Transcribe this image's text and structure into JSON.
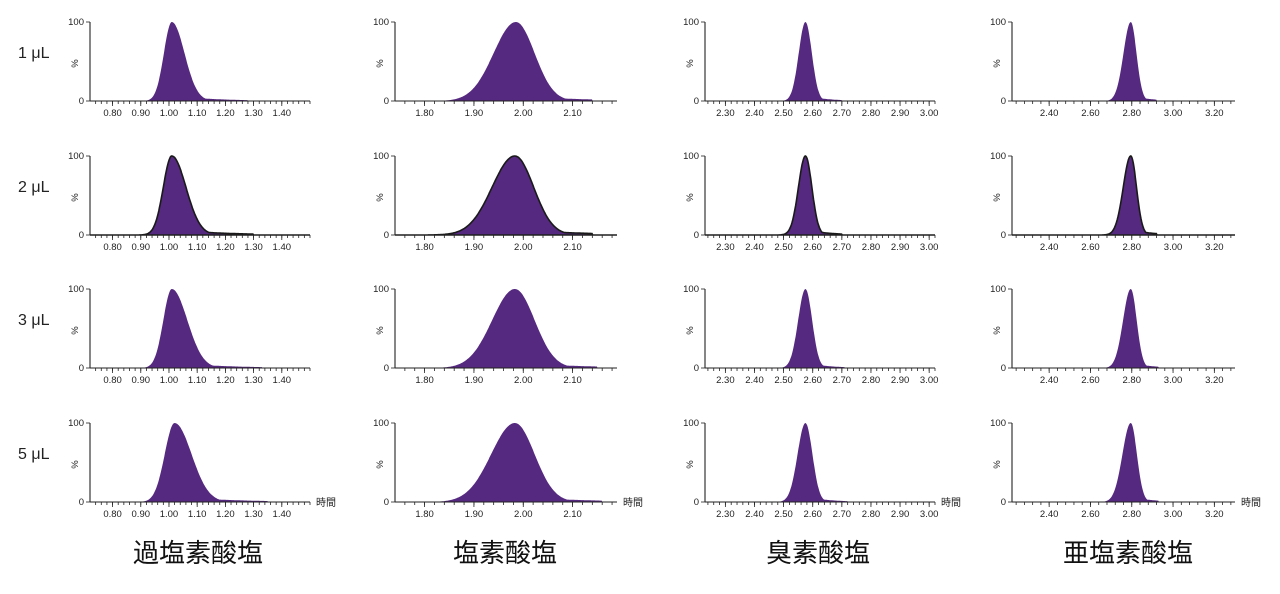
{
  "chart_data": {
    "type": "area",
    "row_labels": [
      "1 μL",
      "2 μL",
      "3 μL",
      "5 μL"
    ],
    "column_titles": [
      "過塩素酸塩",
      "塩素酸塩",
      "臭素酸塩",
      "亜塩素酸塩"
    ],
    "y_axis": {
      "label": "%",
      "ticks": [
        0,
        100
      ],
      "ylim": [
        0,
        100
      ]
    },
    "x_axis_label": "時間",
    "peak_color": "#55297f",
    "outline_color": "#1a1a1a",
    "columns": [
      {
        "title": "過塩素酸塩",
        "xlim": [
          0.72,
          1.5
        ],
        "x_ticks": [
          0.8,
          0.9,
          1.0,
          1.1,
          1.2,
          1.3,
          1.4
        ],
        "x_tick_labels": [
          "0.80",
          "0.90",
          "1.00",
          "1.10",
          "1.20",
          "1.30",
          "1.40"
        ],
        "peaks": [
          {
            "row": "1 μL",
            "apex": 1.01,
            "height": 100,
            "sigma_left": 0.028,
            "sigma_right": 0.045,
            "end": 1.28
          },
          {
            "row": "2 μL",
            "apex": 1.01,
            "height": 100,
            "sigma_left": 0.03,
            "sigma_right": 0.05,
            "end": 1.3,
            "outlined": true
          },
          {
            "row": "3 μL",
            "apex": 1.01,
            "height": 100,
            "sigma_left": 0.03,
            "sigma_right": 0.055,
            "end": 1.33
          },
          {
            "row": "5 μL",
            "apex": 1.02,
            "height": 100,
            "sigma_left": 0.035,
            "sigma_right": 0.06,
            "end": 1.35
          }
        ]
      },
      {
        "title": "塩素酸塩",
        "xlim": [
          1.74,
          2.19
        ],
        "x_ticks": [
          1.8,
          1.9,
          2.0,
          2.1
        ],
        "x_tick_labels": [
          "1.80",
          "1.90",
          "2.00",
          "2.10"
        ],
        "peaks": [
          {
            "row": "1 μL",
            "apex": 1.985,
            "height": 100,
            "sigma_left": 0.045,
            "sigma_right": 0.038,
            "end": 2.14
          },
          {
            "row": "2 μL",
            "apex": 1.983,
            "height": 100,
            "sigma_left": 0.046,
            "sigma_right": 0.038,
            "end": 2.14,
            "outlined": true
          },
          {
            "row": "3 μL",
            "apex": 1.983,
            "height": 100,
            "sigma_left": 0.046,
            "sigma_right": 0.04,
            "end": 2.15
          },
          {
            "row": "5 μL",
            "apex": 1.983,
            "height": 100,
            "sigma_left": 0.048,
            "sigma_right": 0.04,
            "end": 2.16
          }
        ]
      },
      {
        "title": "臭素酸塩",
        "xlim": [
          2.23,
          3.02
        ],
        "x_ticks": [
          2.3,
          2.4,
          2.5,
          2.6,
          2.7,
          2.8,
          2.9,
          3.0
        ],
        "x_tick_labels": [
          "2.30",
          "2.40",
          "2.50",
          "2.60",
          "2.70",
          "2.80",
          "2.90",
          "3.00"
        ],
        "peaks": [
          {
            "row": "1 μL",
            "apex": 2.575,
            "height": 100,
            "sigma_left": 0.023,
            "sigma_right": 0.022,
            "end": 2.7
          },
          {
            "row": "2 μL",
            "apex": 2.575,
            "height": 100,
            "sigma_left": 0.024,
            "sigma_right": 0.022,
            "end": 2.7,
            "outlined": true
          },
          {
            "row": "3 μL",
            "apex": 2.575,
            "height": 100,
            "sigma_left": 0.025,
            "sigma_right": 0.023,
            "end": 2.71
          },
          {
            "row": "5 μL",
            "apex": 2.575,
            "height": 100,
            "sigma_left": 0.027,
            "sigma_right": 0.024,
            "end": 2.72
          }
        ]
      },
      {
        "title": "亜塩素酸塩",
        "xlim": [
          2.22,
          3.3
        ],
        "x_ticks": [
          2.4,
          2.6,
          2.8,
          3.0,
          3.2
        ],
        "x_tick_labels": [
          "2.40",
          "2.60",
          "2.80",
          "3.00",
          "3.20"
        ],
        "peaks": [
          {
            "row": "1 μL",
            "apex": 2.795,
            "height": 100,
            "sigma_left": 0.035,
            "sigma_right": 0.028,
            "end": 2.92
          },
          {
            "row": "2 μL",
            "apex": 2.795,
            "height": 100,
            "sigma_left": 0.036,
            "sigma_right": 0.028,
            "end": 2.92,
            "outlined": true
          },
          {
            "row": "3 μL",
            "apex": 2.795,
            "height": 100,
            "sigma_left": 0.037,
            "sigma_right": 0.029,
            "end": 2.93
          },
          {
            "row": "5 μL",
            "apex": 2.795,
            "height": 100,
            "sigma_left": 0.04,
            "sigma_right": 0.03,
            "end": 2.93
          }
        ]
      }
    ]
  }
}
